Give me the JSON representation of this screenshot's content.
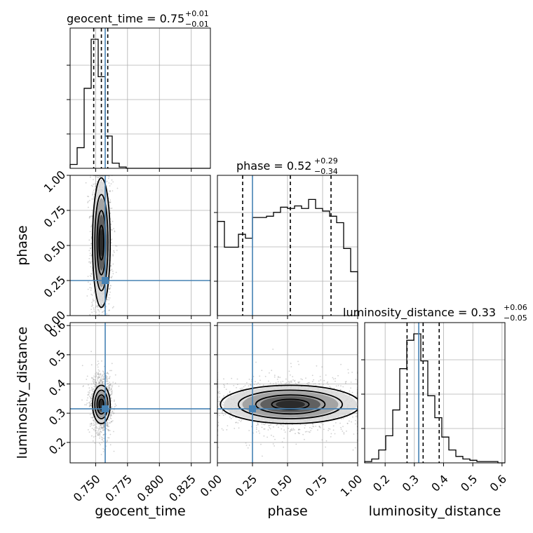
{
  "chart_data": {
    "type": "corner",
    "parameters": [
      "geocent_time",
      "phase",
      "luminosity_distance"
    ],
    "truths": {
      "geocent_time": 0.7575,
      "phase": 0.25,
      "luminosity_distance": 0.315
    },
    "titles": [
      {
        "param": "geocent_time",
        "median": "0.75",
        "plus": "+0.01",
        "minus": "−0.01",
        "label": "geocent_time = 0.75"
      },
      {
        "param": "phase",
        "median": "0.52",
        "plus": "+0.29",
        "minus": "−0.34",
        "label": "phase = 0.52"
      },
      {
        "param": "luminosity_distance",
        "median": "0.33",
        "plus": "+0.06",
        "minus": "−0.05",
        "label": "luminosity_distance = 0.33"
      }
    ],
    "axis_ranges": {
      "geocent_time": [
        0.73,
        0.84
      ],
      "phase": [
        0.0,
        1.0
      ],
      "luminosity_distance": [
        0.13,
        0.61
      ]
    },
    "ticks": {
      "geocent_time": [
        "0.750",
        "0.775",
        "0.800",
        "0.825"
      ],
      "phase": [
        "0.00",
        "0.25",
        "0.50",
        "0.75",
        "1.00"
      ],
      "luminosity_distance_x": [
        "0.2",
        "0.3",
        "0.4",
        "0.5",
        "0.6"
      ],
      "luminosity_distance_y": [
        "0.2",
        "0.3",
        "0.4",
        "0.5",
        "0.6"
      ],
      "phase_y": [
        "0.00",
        "0.25",
        "0.50",
        "0.75",
        "1.00"
      ]
    },
    "histograms": {
      "geocent_time": {
        "edges": [
          0.73,
          0.7355,
          0.741,
          0.7465,
          0.752,
          0.7575,
          0.763,
          0.7685,
          0.774,
          0.7795,
          0.785,
          0.7905,
          0.796,
          0.8015,
          0.807,
          0.8125,
          0.818,
          0.8235,
          0.829,
          0.8345,
          0.84
        ],
        "counts": [
          0.03,
          0.16,
          0.62,
          1.0,
          0.71,
          0.25,
          0.04,
          0.01,
          0,
          0,
          0,
          0,
          0,
          0,
          0,
          0,
          0,
          0,
          0,
          0
        ],
        "quantiles": [
          0.7485,
          0.7545,
          0.7595
        ]
      },
      "phase": {
        "edges": [
          0.0,
          0.05,
          0.1,
          0.15,
          0.2,
          0.25,
          0.3,
          0.35,
          0.4,
          0.45,
          0.5,
          0.55,
          0.6,
          0.65,
          0.7,
          0.75,
          0.8,
          0.85,
          0.9,
          0.95,
          1.0
        ],
        "counts": [
          0.73,
          0.53,
          0.53,
          0.63,
          0.6,
          0.76,
          0.76,
          0.77,
          0.8,
          0.84,
          0.83,
          0.85,
          0.83,
          0.9,
          0.83,
          0.81,
          0.77,
          0.72,
          0.52,
          0.34
        ],
        "quantiles": [
          0.18,
          0.52,
          0.81
        ]
      },
      "luminosity_distance": {
        "edges": [
          0.13,
          0.154,
          0.178,
          0.202,
          0.226,
          0.25,
          0.274,
          0.298,
          0.322,
          0.346,
          0.37,
          0.394,
          0.418,
          0.442,
          0.466,
          0.49,
          0.514,
          0.538,
          0.562,
          0.586,
          0.61
        ],
        "counts": [
          0.01,
          0.03,
          0.1,
          0.21,
          0.41,
          0.73,
          0.95,
          1.0,
          0.79,
          0.52,
          0.35,
          0.2,
          0.1,
          0.05,
          0.03,
          0.02,
          0.01,
          0.01,
          0.01,
          0.0
        ],
        "quantiles": [
          0.275,
          0.33,
          0.385
        ]
      }
    },
    "grid": true
  }
}
